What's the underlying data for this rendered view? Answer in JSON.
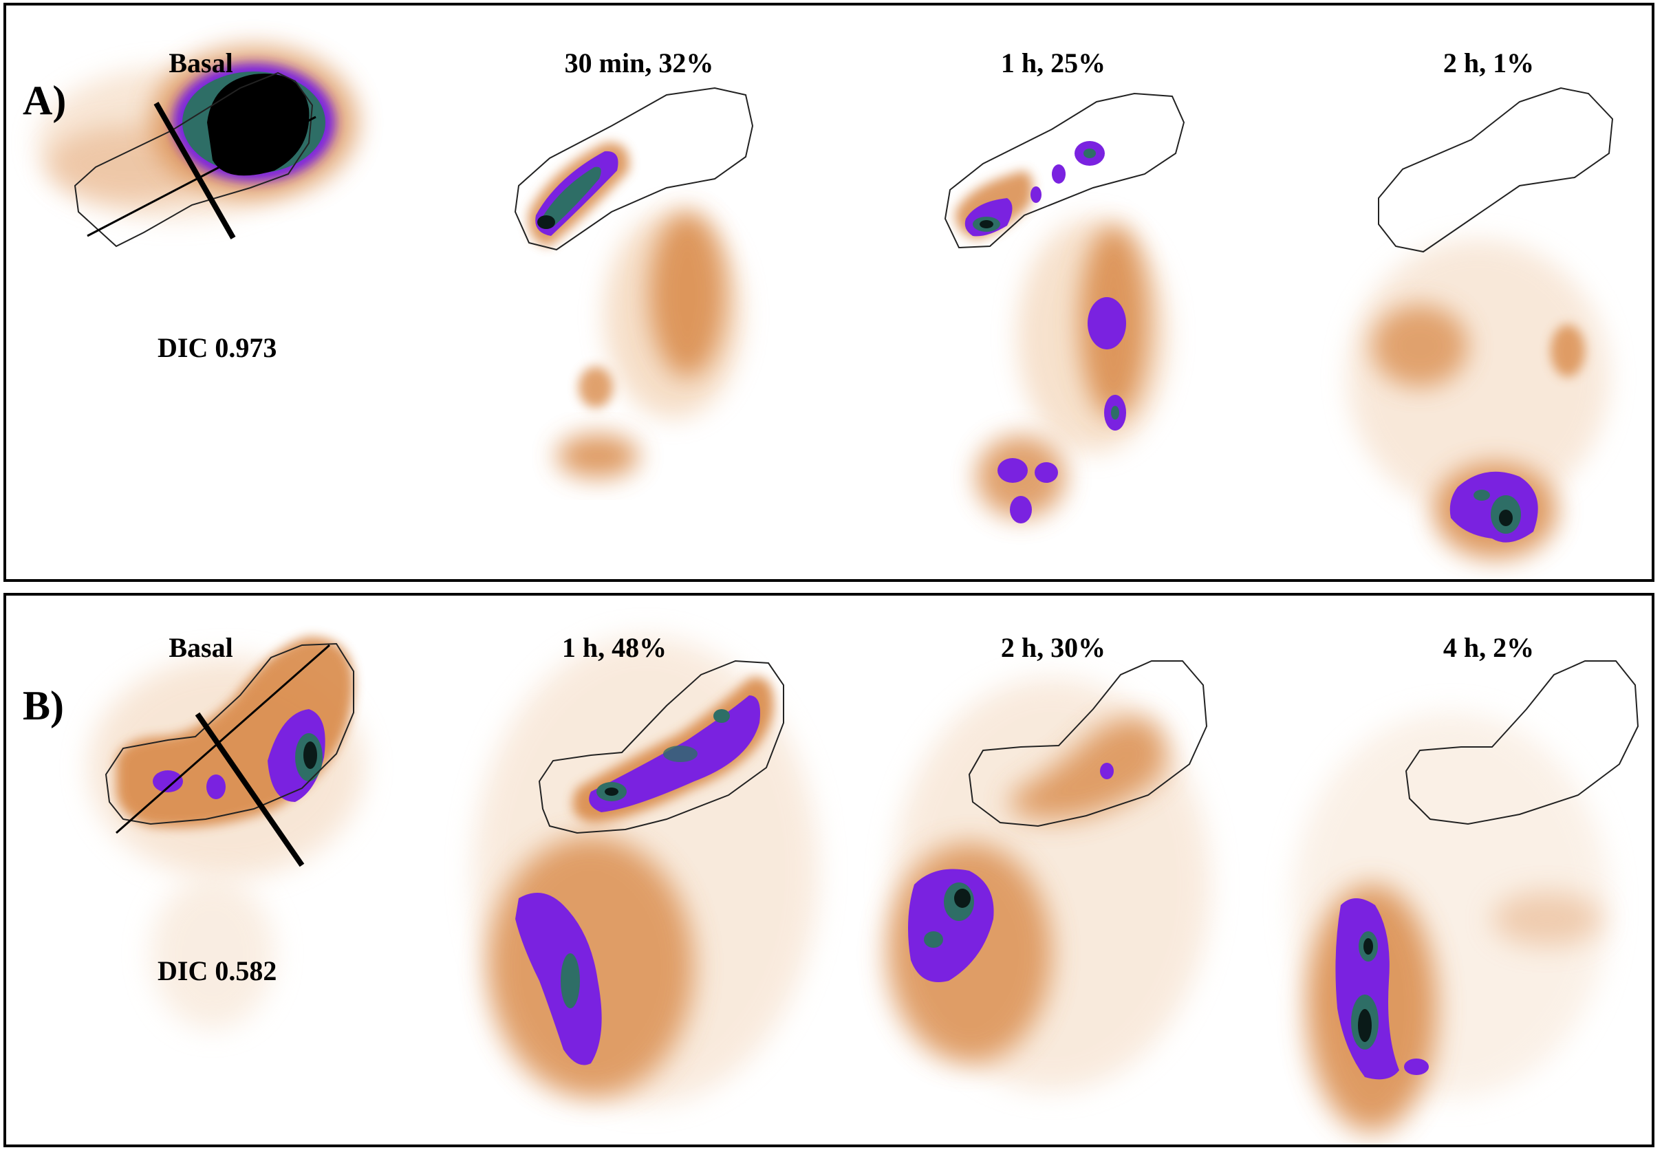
{
  "panels": {
    "A": {
      "letter": "A)",
      "timepoints": [
        "Basal",
        "30 min, 32%",
        "1 h, 25%",
        "2 h, 1%"
      ],
      "dic": "DIC 0.973"
    },
    "B": {
      "letter": "B)",
      "timepoints": [
        "Basal",
        "1 h, 48%",
        "2 h, 30%",
        "4 h, 2%"
      ],
      "dic": "DIC 0.582"
    }
  },
  "colors": {
    "low_uptake": "#d98a4a",
    "mid_uptake": "#7a22e0",
    "high_uptake": "#2e6e66",
    "saturated": "#000000",
    "outline": "#222222",
    "frame": "#000000",
    "background": "#ffffff"
  }
}
